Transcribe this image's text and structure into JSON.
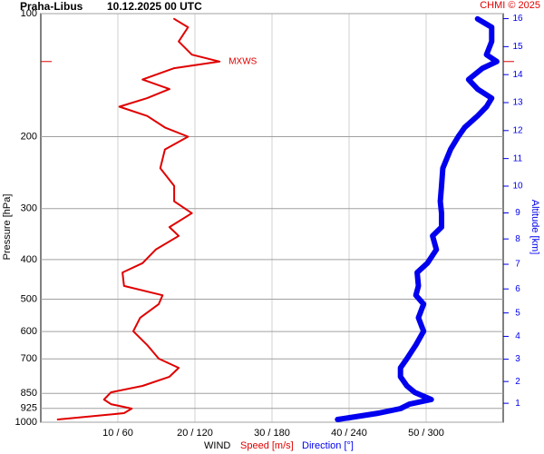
{
  "chart_data": {
    "type": "profile",
    "station": "Praha-Libus",
    "time": "10.12.2025 00 UTC",
    "credit": "CHMI © 2025",
    "y_label": "Pressure [hPa]",
    "y2_label": "Altitude [km]",
    "x_label": "WIND",
    "ylim": [
      100,
      1000
    ],
    "log_y": true,
    "yticks": [
      100,
      200,
      300,
      400,
      500,
      600,
      700,
      850,
      925,
      1000
    ],
    "y2ticks": [
      1,
      2,
      3,
      4,
      5,
      6,
      7,
      8,
      9,
      10,
      11,
      12,
      13,
      14,
      15,
      16
    ],
    "xlim": [
      0,
      60
    ],
    "x2lim": [
      0,
      360
    ],
    "xticks": [
      {
        "value": 10,
        "label": "10 / 60"
      },
      {
        "value": 20,
        "label": "20 / 120"
      },
      {
        "value": 30,
        "label": "30 / 180"
      },
      {
        "value": 40,
        "label": "40 / 240"
      },
      {
        "value": 50,
        "label": "50 / 300"
      }
    ],
    "grid": true,
    "pressure": [
      985,
      950,
      926,
      903,
      880,
      845,
      815,
      774,
      736,
      699,
      647,
      599,
      555,
      514,
      489,
      464,
      430,
      408,
      378,
      350,
      333,
      308,
      288,
      264,
      239,
      215,
      200,
      190,
      178,
      169,
      161,
      153,
      145,
      136,
      131,
      126,
      117,
      108,
      103
    ],
    "series": [
      {
        "name": "Speed [m/s]",
        "color": "#e00000",
        "values": [
          2.2,
          10.8,
          11.8,
          9.1,
          8.2,
          9.1,
          13.2,
          16.7,
          17.9,
          15.3,
          13.8,
          12.0,
          12.9,
          15.3,
          15.8,
          10.8,
          10.6,
          13.2,
          14.9,
          17.9,
          16.7,
          19.6,
          17.3,
          17.3,
          15.5,
          16.1,
          19.1,
          16.1,
          13.8,
          10.2,
          13.8,
          16.7,
          13.2,
          17.3,
          23.2,
          19.6,
          17.9,
          19.1,
          17.3
        ]
      },
      {
        "name": "Direction [°]",
        "color": "#0000ee",
        "axis": "x2",
        "values": [
          231,
          263,
          280,
          287,
          304,
          291,
          285,
          280,
          280,
          285,
          292,
          298,
          294,
          298,
          292,
          294,
          293,
          301,
          308,
          305,
          312,
          312,
          311,
          312,
          313,
          319,
          325,
          330,
          340,
          347,
          351,
          340,
          333,
          344,
          355,
          347,
          351,
          351,
          340
        ]
      }
    ],
    "annotation": {
      "label": "MXWS",
      "pressure": 131
    }
  }
}
